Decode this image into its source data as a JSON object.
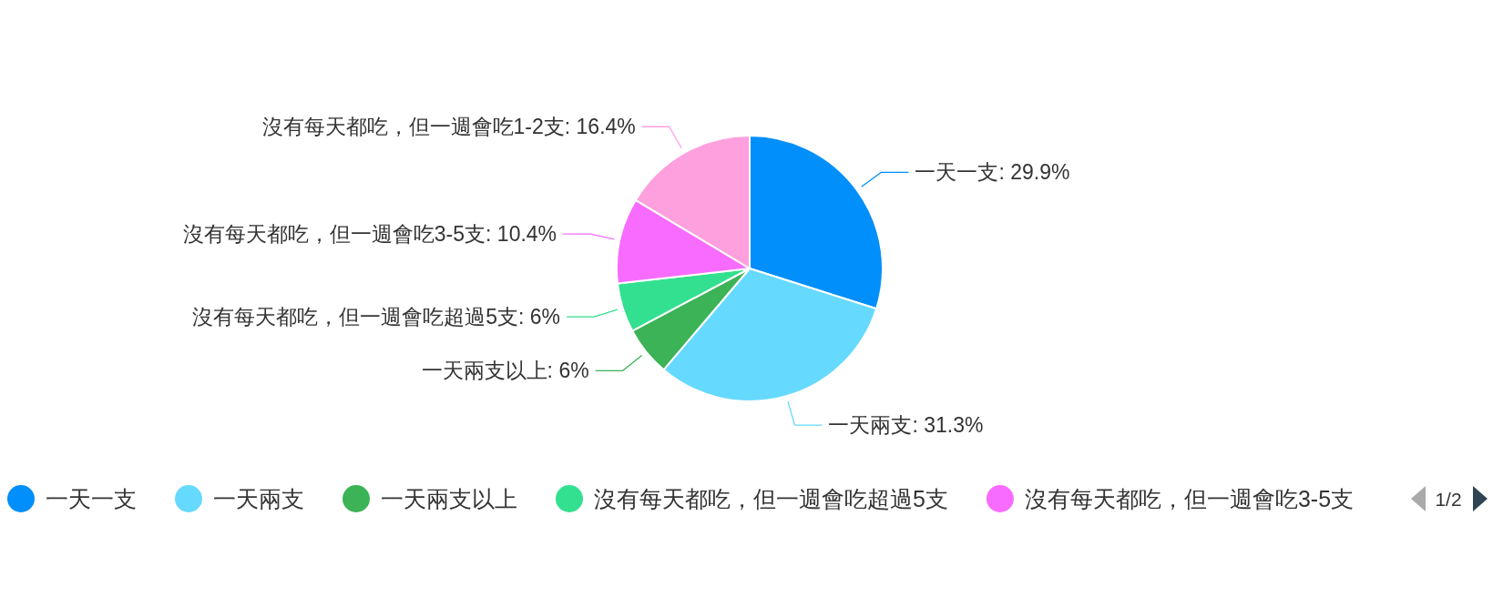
{
  "chart_data": {
    "type": "pie",
    "categories": [
      "一天一支",
      "一天兩支",
      "一天兩支以上",
      "沒有每天都吃，但一週會吃超過5支",
      "沒有每天都吃，但一週會吃3-5支",
      "沒有每天都吃，但一週會吃1-2支"
    ],
    "values": [
      29.9,
      31.3,
      6,
      6,
      10.4,
      16.4
    ],
    "colors": [
      "#008ffb",
      "#66d9ff",
      "#3cb356",
      "#33e08f",
      "#f76cff",
      "#ffa0de"
    ],
    "value_labels": [
      ": 29.9%",
      ": 31.3%",
      ": 6%",
      ": 6%",
      ": 10.4%",
      ": 16.4%"
    ],
    "legend": "bottom",
    "annotations": [
      "1/2"
    ]
  }
}
